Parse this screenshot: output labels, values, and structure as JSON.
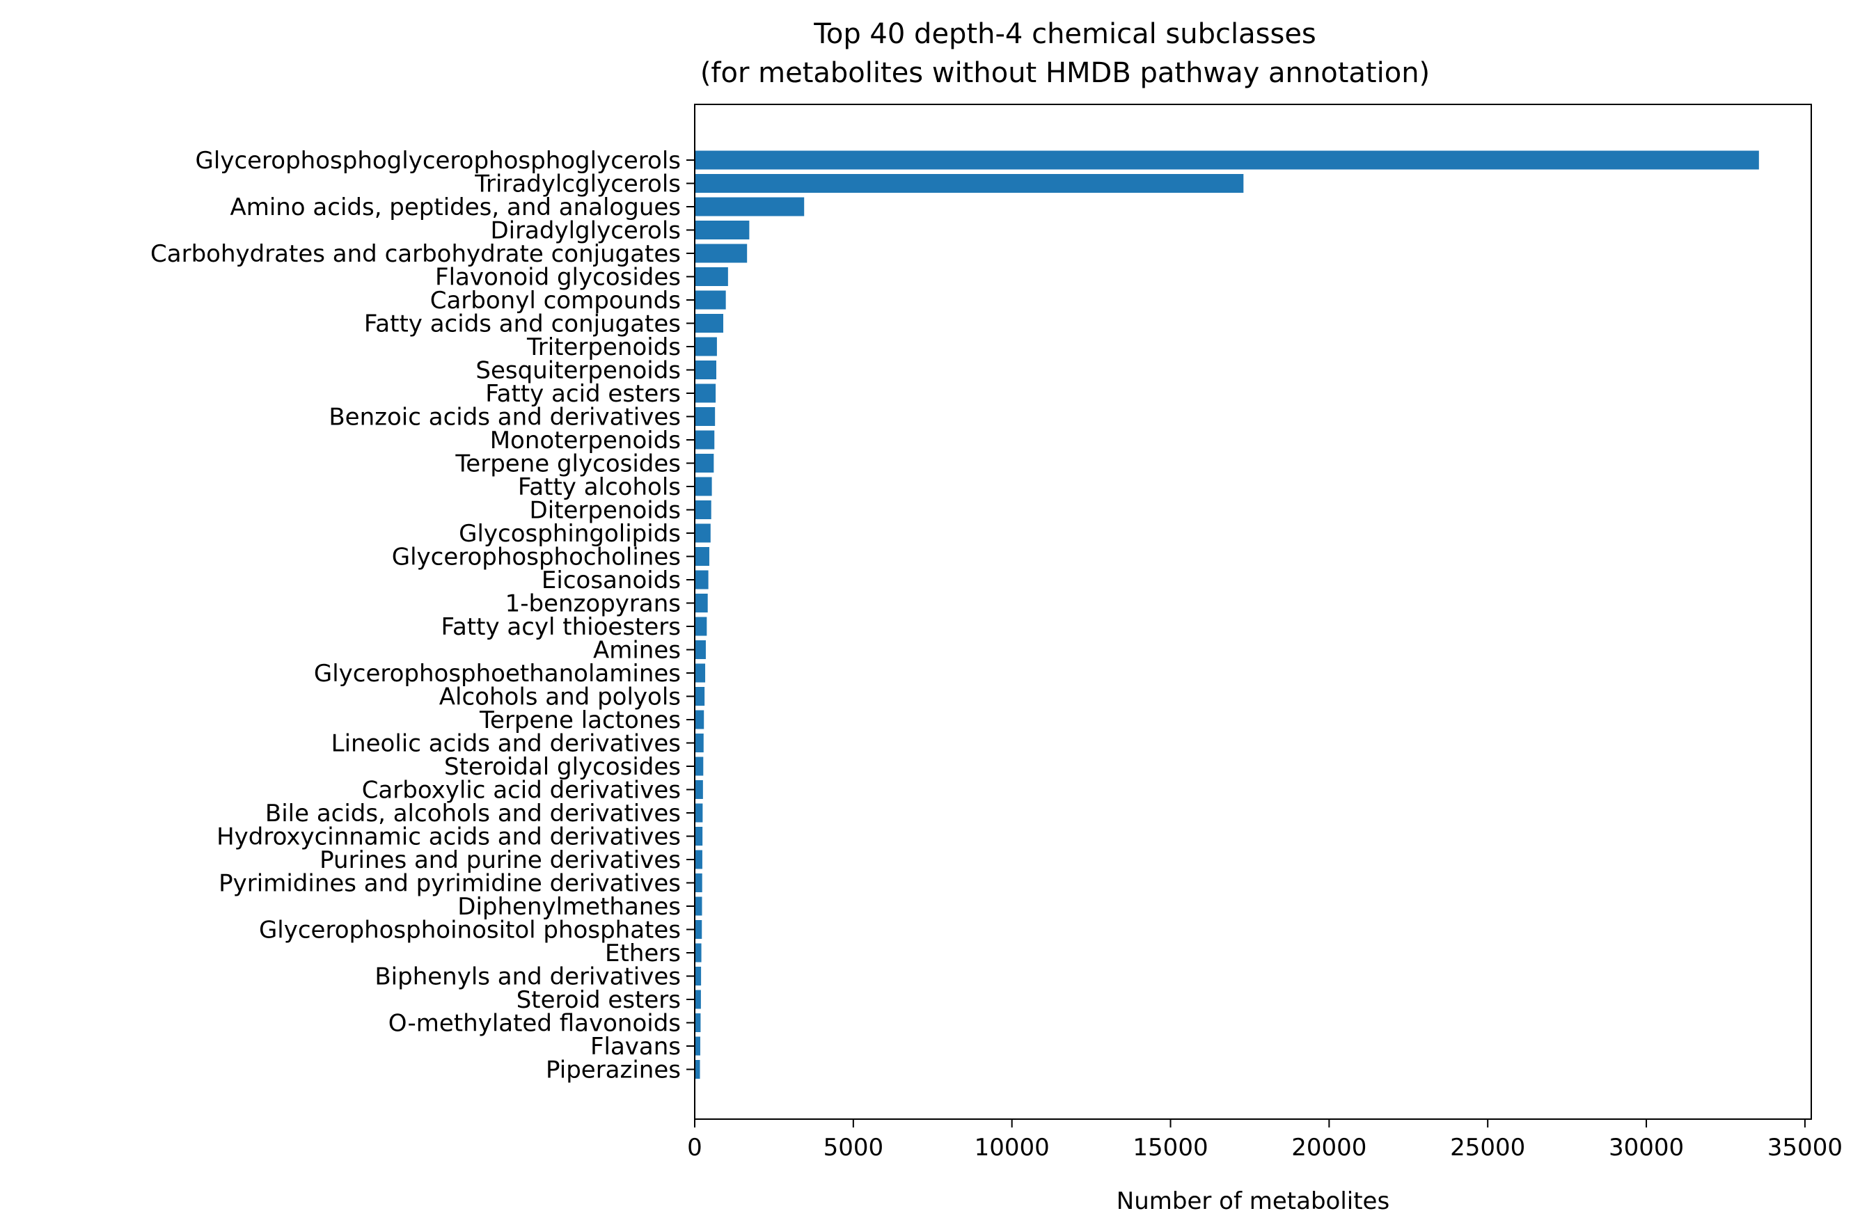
{
  "chart_data": {
    "type": "bar",
    "orientation": "horizontal",
    "title": "Top 40 depth-4 chemical subclasses",
    "subtitle": "(for metabolites without HMDB pathway annotation)",
    "xlabel": "Number of metabolites",
    "ylabel": "",
    "xlim": [
      0,
      35200
    ],
    "xticks": [
      0,
      5000,
      10000,
      15000,
      20000,
      25000,
      30000,
      35000
    ],
    "xtick_labels": [
      "0",
      "5000",
      "10000",
      "15000",
      "20000",
      "25000",
      "30000",
      "35000"
    ],
    "grid": false,
    "bar_color": "#1f77b4",
    "categories": [
      "Glycerophosphoglycerophosphoglycerols",
      "Triradylcglycerols",
      "Amino acids, peptides, and analogues",
      "Diradylglycerols",
      "Carbohydrates and carbohydrate conjugates",
      "Flavonoid glycosides",
      "Carbonyl compounds",
      "Fatty acids and conjugates",
      "Triterpenoids",
      "Sesquiterpenoids",
      "Fatty acid esters",
      "Benzoic acids and derivatives",
      "Monoterpenoids",
      "Terpene glycosides",
      "Fatty alcohols",
      "Diterpenoids",
      "Glycosphingolipids",
      "Glycerophosphocholines",
      "Eicosanoids",
      "1-benzopyrans",
      "Fatty acyl thioesters",
      "Amines",
      "Glycerophosphoethanolamines",
      "Alcohols and polyols",
      "Terpene lactones",
      "Lineolic acids and derivatives",
      "Steroidal glycosides",
      "Carboxylic acid derivatives",
      "Bile acids, alcohols and derivatives",
      "Hydroxycinnamic acids and derivatives",
      "Purines and purine derivatives",
      "Pyrimidines and pyrimidine derivatives",
      "Diphenylmethanes",
      "Glycerophosphoinositol phosphates",
      "Ethers",
      "Biphenyls and derivatives",
      "Steroid esters",
      "O-methylated flavonoids",
      "Flavans",
      "Piperazines"
    ],
    "values": [
      33550,
      17300,
      3450,
      1720,
      1650,
      1050,
      980,
      900,
      700,
      680,
      660,
      640,
      620,
      600,
      540,
      520,
      500,
      460,
      430,
      410,
      380,
      350,
      330,
      310,
      290,
      280,
      270,
      260,
      250,
      245,
      240,
      235,
      230,
      225,
      210,
      200,
      195,
      185,
      175,
      165
    ]
  }
}
